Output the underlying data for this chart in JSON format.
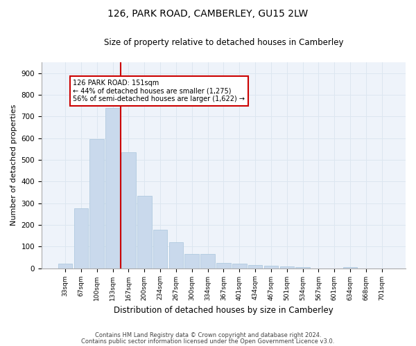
{
  "title": "126, PARK ROAD, CAMBERLEY, GU15 2LW",
  "subtitle": "Size of property relative to detached houses in Camberley",
  "xlabel": "Distribution of detached houses by size in Camberley",
  "ylabel": "Number of detached properties",
  "categories": [
    "33sqm",
    "67sqm",
    "100sqm",
    "133sqm",
    "167sqm",
    "200sqm",
    "234sqm",
    "267sqm",
    "300sqm",
    "334sqm",
    "367sqm",
    "401sqm",
    "434sqm",
    "467sqm",
    "501sqm",
    "534sqm",
    "567sqm",
    "601sqm",
    "634sqm",
    "668sqm",
    "701sqm"
  ],
  "values": [
    22,
    275,
    595,
    740,
    535,
    335,
    178,
    120,
    65,
    65,
    25,
    22,
    13,
    10,
    8,
    5,
    0,
    0,
    5,
    0,
    0
  ],
  "bar_color": "#c9d9ec",
  "bar_edge_color": "#a8c4dc",
  "grid_color": "#dce6f0",
  "bg_color": "#eef3fa",
  "vline_x": 3.5,
  "vline_color": "#cc0000",
  "annotation_text": "126 PARK ROAD: 151sqm\n← 44% of detached houses are smaller (1,275)\n56% of semi-detached houses are larger (1,622) →",
  "annotation_box_color": "#ffffff",
  "annotation_box_edge": "#cc0000",
  "footer_line1": "Contains HM Land Registry data © Crown copyright and database right 2024.",
  "footer_line2": "Contains public sector information licensed under the Open Government Licence v3.0.",
  "ylim": [
    0,
    950
  ],
  "yticks": [
    0,
    100,
    200,
    300,
    400,
    500,
    600,
    700,
    800,
    900
  ]
}
